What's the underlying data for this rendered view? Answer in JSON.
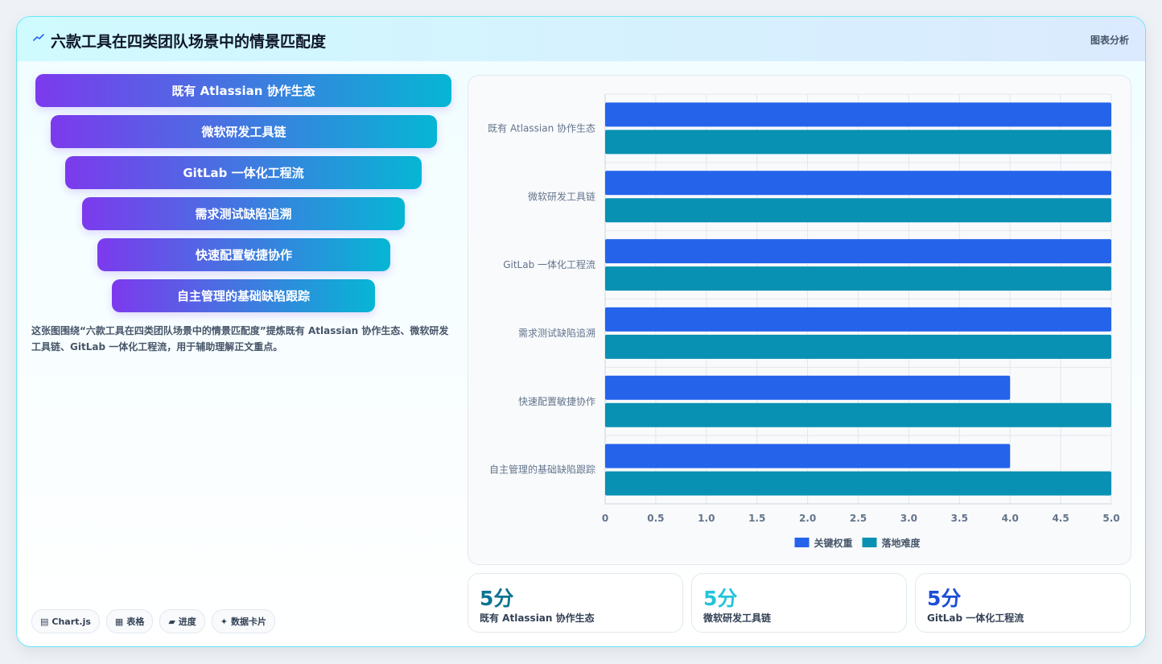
{
  "header": {
    "title": "六款工具在四类团队场景中的情景匹配度",
    "tag": "图表分析"
  },
  "funnel": {
    "items": [
      "既有 Atlassian 协作生态",
      "微软研发工具链",
      "GitLab 一体化工程流",
      "需求测试缺陷追溯",
      "快速配置敏捷协作",
      "自主管理的基础缺陷跟踪"
    ]
  },
  "description": "这张图围绕“六款工具在四类团队场景中的情景匹配度”提炼既有 Atlassian 协作生态、微软研发工具链、GitLab 一体化工程流，用于辅助理解正文重点。",
  "chips": [
    {
      "icon": "▤",
      "label": "Chart.js"
    },
    {
      "icon": "▦",
      "label": "表格"
    },
    {
      "icon": "▰",
      "label": "进度"
    },
    {
      "icon": "✦",
      "label": "数据卡片"
    }
  ],
  "stats": [
    {
      "value": "5分",
      "label": "既有 Atlassian 协作生态",
      "color": "#0e7490"
    },
    {
      "value": "5分",
      "label": "微软研发工具链",
      "color": "#22c5d9"
    },
    {
      "value": "5分",
      "label": "GitLab 一体化工程流",
      "color": "#1d4ed8"
    }
  ],
  "chart_data": {
    "type": "bar",
    "orientation": "horizontal",
    "categories": [
      "既有 Atlassian 协作生态",
      "微软研发工具链",
      "GitLab 一体化工程流",
      "需求测试缺陷追溯",
      "快速配置敏捷协作",
      "自主管理的基础缺陷跟踪"
    ],
    "series": [
      {
        "name": "关键权重",
        "color": "#2563eb",
        "values": [
          5,
          5,
          5,
          5,
          4,
          4
        ]
      },
      {
        "name": "落地难度",
        "color": "#0891b2",
        "values": [
          5,
          5,
          5,
          5,
          5,
          5
        ]
      }
    ],
    "xlim": [
      0,
      5
    ],
    "xticks": [
      "0",
      "0.5",
      "1.0",
      "1.5",
      "2.0",
      "2.5",
      "3.0",
      "3.5",
      "4.0",
      "4.5",
      "5.0"
    ],
    "grid": true,
    "legend": "bottom"
  }
}
